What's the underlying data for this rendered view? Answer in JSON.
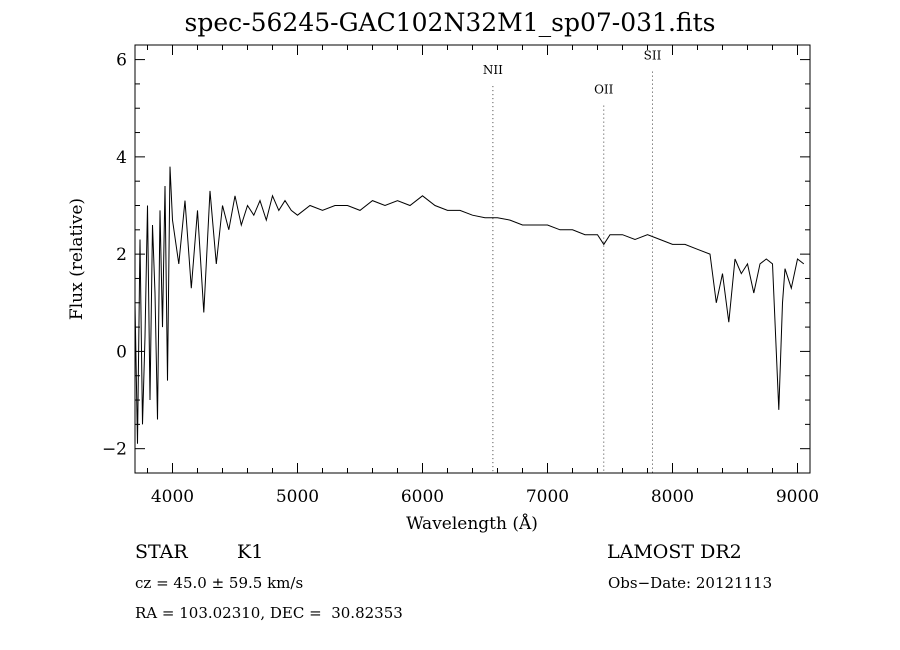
{
  "chart_data": {
    "type": "line",
    "title": "spec-56245-GAC102N32M1_sp07-031.fits",
    "xlabel": "Wavelength (Å)",
    "ylabel": "Flux (relative)",
    "xlim": [
      3700,
      9100
    ],
    "ylim": [
      -2.5,
      6.3
    ],
    "xticks": [
      4000,
      5000,
      6000,
      7000,
      8000,
      9000
    ],
    "xtick_labels": [
      "4000",
      "5000",
      "6000",
      "7000",
      "8000",
      "9000"
    ],
    "yticks": [
      -2,
      0,
      2,
      4,
      6
    ],
    "ytick_labels": [
      "−2",
      "0",
      "2",
      "4",
      "6"
    ],
    "grid": false,
    "series": [
      {
        "x": [
          3700,
          3720,
          3740,
          3760,
          3780,
          3800,
          3820,
          3840,
          3860,
          3880,
          3900,
          3920,
          3940,
          3960,
          3980,
          4000,
          4050,
          4100,
          4150,
          4200,
          4250,
          4300,
          4350,
          4400,
          4450,
          4500,
          4550,
          4600,
          4650,
          4700,
          4750,
          4800,
          4850,
          4900,
          4950,
          5000,
          5100,
          5200,
          5300,
          5400,
          5500,
          5600,
          5700,
          5800,
          5900,
          6000,
          6100,
          6200,
          6300,
          6400,
          6500,
          6600,
          6700,
          6800,
          6900,
          7000,
          7100,
          7200,
          7300,
          7400,
          7450,
          7500,
          7600,
          7700,
          7800,
          7900,
          8000,
          8100,
          8200,
          8300,
          8350,
          8400,
          8450,
          8500,
          8550,
          8600,
          8650,
          8700,
          8750,
          8800,
          8850,
          8880,
          8900,
          8950,
          9000,
          9050
        ],
        "values": [
          1.0,
          -1.9,
          2.3,
          -1.5,
          0.3,
          3.0,
          -1.0,
          2.6,
          1.2,
          -1.4,
          2.9,
          0.5,
          3.4,
          -0.6,
          3.8,
          2.7,
          1.8,
          3.1,
          1.3,
          2.9,
          0.8,
          3.3,
          1.8,
          3.0,
          2.5,
          3.2,
          2.6,
          3.0,
          2.8,
          3.1,
          2.7,
          3.2,
          2.9,
          3.1,
          2.9,
          2.8,
          3.0,
          2.9,
          3.0,
          3.0,
          2.9,
          3.1,
          3.0,
          3.1,
          3.0,
          3.2,
          3.0,
          2.9,
          2.9,
          2.8,
          2.75,
          2.75,
          2.7,
          2.6,
          2.6,
          2.6,
          2.5,
          2.5,
          2.4,
          2.4,
          2.2,
          2.4,
          2.4,
          2.3,
          2.4,
          2.3,
          2.2,
          2.2,
          2.1,
          2.0,
          1.0,
          1.6,
          0.6,
          1.9,
          1.6,
          1.8,
          1.2,
          1.8,
          1.9,
          1.8,
          -1.2,
          1.0,
          1.7,
          1.3,
          1.9,
          1.8
        ]
      }
    ],
    "annotations": [
      {
        "label": "NII",
        "x": 6563,
        "y": 5.7
      },
      {
        "label": "OII",
        "x": 7450,
        "y": 5.3
      },
      {
        "label": "SII",
        "x": 7840,
        "y": 6.0
      }
    ],
    "line_colors": {
      "series": "#000000",
      "markers": "#444444"
    }
  },
  "info": {
    "object_class": "STAR",
    "subclass": "K1",
    "redshift": "cz = 45.0 ± 59.5 km/s",
    "coords": "RA = 103.02310, DEC =  30.82353",
    "survey": "LAMOST DR2",
    "obs_date": "Obs−Date: 20121113"
  }
}
